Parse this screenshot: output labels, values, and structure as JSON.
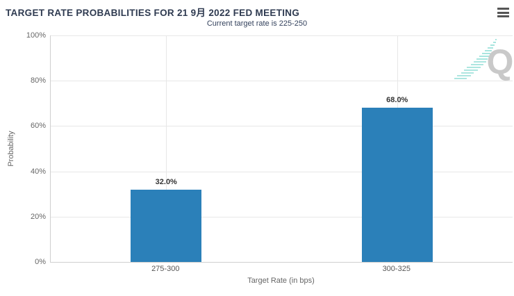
{
  "header": {
    "title": "TARGET RATE PROBABILITIES FOR 21 9月 2022 FED MEETING",
    "subtitle": "Current target rate is 225-250"
  },
  "icons": {
    "menu": "hamburger-menu-icon",
    "watermark": "q-logo-watermark"
  },
  "colors": {
    "bar": "#2b80b9",
    "title_text": "#2e3a50",
    "axis_text": "#666666",
    "category_text": "#555555",
    "data_label_text": "#333333",
    "gridline": "#e7e7e7",
    "axis_line": "#cfcfcf",
    "watermark_q": "#c9c9c9",
    "watermark_streak": "#7fd9d0"
  },
  "chart_data": {
    "type": "bar",
    "title": "TARGET RATE PROBABILITIES FOR 21 9月 2022 FED MEETING",
    "subtitle": "Current target rate is 225-250",
    "categories": [
      "275-300",
      "300-325"
    ],
    "values": [
      32.0,
      68.0
    ],
    "value_labels": [
      "32.0%",
      "68.0%"
    ],
    "xlabel": "Target Rate (in bps)",
    "ylabel": "Probability",
    "ylim": [
      0,
      100
    ],
    "ytick_interval": 20,
    "ytick_labels": [
      "0%",
      "20%",
      "40%",
      "60%",
      "80%",
      "100%"
    ],
    "grid": true,
    "legend_position": "none"
  }
}
